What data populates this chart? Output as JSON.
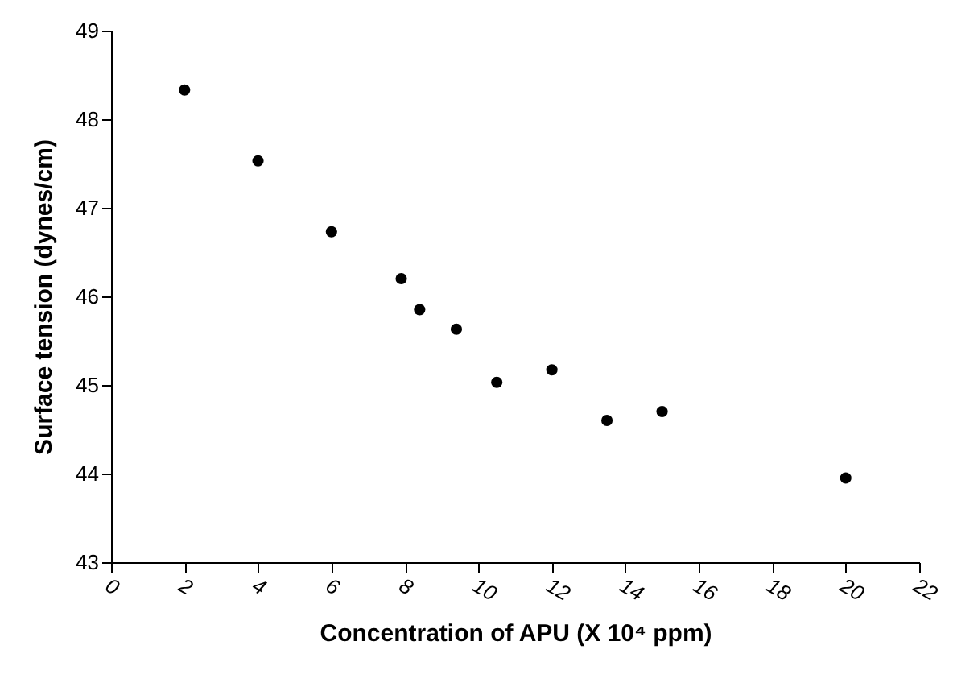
{
  "chart_data": {
    "type": "scatter",
    "xlabel": "Concentration of APU (X 10⁴ ppm)",
    "ylabel": "Surface tension (dynes/cm)",
    "x": [
      2,
      4,
      6,
      7.9,
      8.4,
      9.4,
      10.5,
      12,
      13.5,
      15,
      20
    ],
    "series": [
      {
        "color": "#000000",
        "values": [
          48.33,
          47.53,
          46.73,
          46.2,
          45.85,
          45.63,
          45.03,
          45.17,
          44.6,
          44.7,
          43.95
        ]
      }
    ],
    "xlim": [
      0,
      22
    ],
    "xticks": [
      0,
      2,
      4,
      6,
      8,
      10,
      12,
      14,
      16,
      18,
      20,
      22
    ],
    "ylim": [
      43,
      49
    ],
    "yticks": [
      43,
      44,
      45,
      46,
      47,
      48,
      49
    ],
    "marker": "circle",
    "grid": false,
    "legend": false
  }
}
